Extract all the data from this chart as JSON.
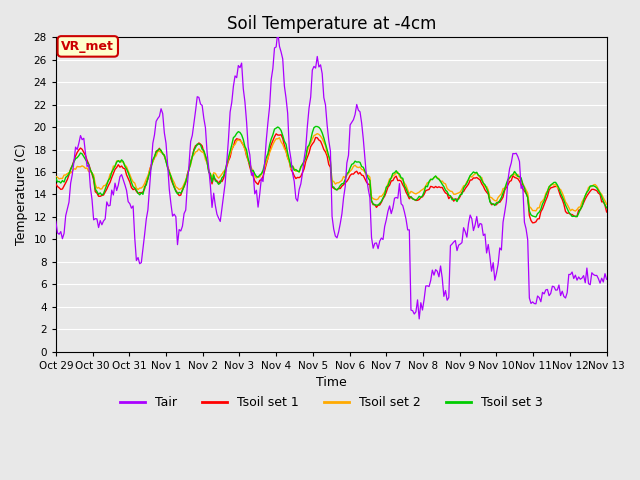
{
  "title": "Soil Temperature at -4cm",
  "xlabel": "Time",
  "ylabel": "Temperature (C)",
  "ylim": [
    0,
    28
  ],
  "yticks": [
    0,
    2,
    4,
    6,
    8,
    10,
    12,
    14,
    16,
    18,
    20,
    22,
    24,
    26,
    28
  ],
  "xtick_labels": [
    "Oct 29",
    "Oct 30",
    "Oct 31",
    "Nov 1",
    "Nov 2",
    "Nov 3",
    "Nov 4",
    "Nov 5",
    "Nov 6",
    "Nov 7",
    "Nov 8",
    "Nov 9",
    "Nov 10",
    "Nov 11",
    "Nov 12",
    "Nov 13"
  ],
  "legend_entries": [
    "Tair",
    "Tsoil set 1",
    "Tsoil set 2",
    "Tsoil set 3"
  ],
  "line_colors": [
    "#aa00ff",
    "#ff0000",
    "#ffaa00",
    "#00cc00"
  ],
  "annotation_text": "VR_met",
  "annotation_color": "#cc0000",
  "annotation_bg": "#ffffcc",
  "bg_color": "#e8e8e8",
  "plot_bg": "#e8e8e8",
  "n_points": 336,
  "days": 14,
  "Tair_pattern": {
    "day_highs": [
      19.5,
      15.5,
      21.5,
      22.5,
      25.5,
      27.8,
      26.0,
      21.8,
      13.5,
      7.2,
      11.5,
      17.8,
      5.5,
      6.5
    ],
    "night_lows": [
      10.0,
      11.5,
      8.0,
      10.5,
      12.0,
      13.5,
      14.0,
      10.5,
      9.5,
      3.5,
      9.5,
      7.0,
      4.5,
      6.5
    ]
  },
  "Tsoil1_pattern": {
    "day_highs": [
      18.0,
      16.5,
      18.0,
      18.5,
      19.0,
      19.5,
      19.0,
      16.0,
      15.5,
      14.8,
      15.5,
      15.5,
      14.8,
      14.5
    ],
    "night_lows": [
      14.5,
      13.8,
      14.0,
      14.0,
      15.0,
      15.0,
      15.5,
      14.5,
      13.0,
      13.5,
      13.5,
      13.0,
      11.5,
      12.0
    ]
  },
  "Tsoil2_pattern": {
    "day_highs": [
      16.5,
      17.0,
      17.8,
      18.0,
      18.8,
      19.0,
      19.5,
      16.5,
      15.8,
      15.5,
      15.8,
      15.8,
      15.0,
      14.8
    ],
    "night_lows": [
      15.5,
      14.5,
      14.5,
      14.5,
      15.5,
      15.5,
      16.0,
      15.0,
      13.5,
      14.0,
      14.0,
      13.5,
      12.5,
      12.5
    ]
  },
  "Tsoil3_pattern": {
    "day_highs": [
      17.5,
      17.0,
      18.0,
      18.5,
      19.5,
      20.0,
      20.0,
      17.0,
      16.0,
      15.5,
      16.0,
      16.0,
      15.0,
      14.8
    ],
    "night_lows": [
      15.0,
      14.0,
      14.0,
      14.0,
      15.0,
      15.5,
      16.0,
      14.5,
      13.0,
      13.5,
      13.5,
      13.0,
      12.0,
      12.0
    ]
  }
}
